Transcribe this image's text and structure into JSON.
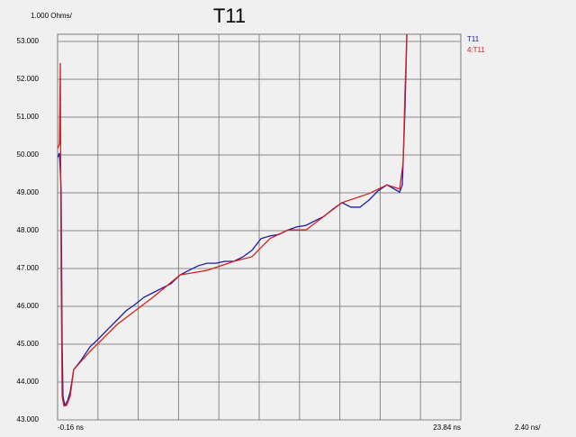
{
  "chart_data": {
    "type": "line",
    "title": "T11",
    "y_scale_label": "1.000 Ohms/",
    "x_scale_label": "2.40 ns/",
    "xlim": [
      -0.16,
      23.84
    ],
    "ylim": [
      43,
      53.19
    ],
    "xticks": [
      {
        "value": -0.16,
        "label": "-0.16 ns"
      },
      {
        "value": 23.84,
        "label": "23.84 ns"
      }
    ],
    "x_grid_divisions": 10,
    "yticks": [
      {
        "value": 43,
        "label": "43.000"
      },
      {
        "value": 44,
        "label": "44.000"
      },
      {
        "value": 45,
        "label": "45.000"
      },
      {
        "value": 46,
        "label": "46.000"
      },
      {
        "value": 47,
        "label": "47.000"
      },
      {
        "value": 48,
        "label": "48.000"
      },
      {
        "value": 49,
        "label": "49.000"
      },
      {
        "value": 50,
        "label": "50.000"
      },
      {
        "value": 51,
        "label": "51.000"
      },
      {
        "value": 52,
        "label": "52.000"
      },
      {
        "value": 53,
        "label": "53.000"
      }
    ],
    "grid": true,
    "series": [
      {
        "name": "T11",
        "color": "#1c1ca8",
        "x": [
          -0.16,
          -0.05,
          0.05,
          0.11,
          0.16,
          0.27,
          0.43,
          0.59,
          0.8,
          1.23,
          1.77,
          2.34,
          2.84,
          3.38,
          3.91,
          4.45,
          4.98,
          5.52,
          6.05,
          6.59,
          7.13,
          7.66,
          8.2,
          8.73,
          9.27,
          9.81,
          10.34,
          10.88,
          11.41,
          11.95,
          12.48,
          13.02,
          13.56,
          14.09,
          14.63,
          15.16,
          15.7,
          16.23,
          16.77,
          17.3,
          17.84,
          18.38,
          18.91,
          19.45,
          19.88,
          20.2,
          20.36,
          20.52,
          20.63
        ],
        "values": [
          49.93,
          50.05,
          49.1,
          45.05,
          43.62,
          43.38,
          43.5,
          43.74,
          44.33,
          44.57,
          44.93,
          45.17,
          45.4,
          45.64,
          45.88,
          46.05,
          46.24,
          46.36,
          46.48,
          46.6,
          46.83,
          46.95,
          47.07,
          47.14,
          47.14,
          47.19,
          47.19,
          47.31,
          47.48,
          47.79,
          47.86,
          47.9,
          48.02,
          48.1,
          48.14,
          48.26,
          48.38,
          48.57,
          48.74,
          48.62,
          48.62,
          48.81,
          49.05,
          49.21,
          49.1,
          49.02,
          49.21,
          51.24,
          53.19
        ]
      },
      {
        "name": "4:T11",
        "color": "#d42020",
        "x": [
          -0.16,
          -0.05,
          0.0,
          0.05,
          0.11,
          0.21,
          0.37,
          0.59,
          0.8,
          1.77,
          3.38,
          4.45,
          5.52,
          7.13,
          8.73,
          10.34,
          11.41,
          12.48,
          13.56,
          14.63,
          15.7,
          16.77,
          18.38,
          19.45,
          20.2,
          20.41,
          20.52,
          20.63
        ],
        "values": [
          50.17,
          50.29,
          52.43,
          46.95,
          43.62,
          43.38,
          43.38,
          43.62,
          44.33,
          44.81,
          45.52,
          45.88,
          46.24,
          46.83,
          46.95,
          47.19,
          47.31,
          47.79,
          48.02,
          48.02,
          48.38,
          48.74,
          48.98,
          49.21,
          49.1,
          49.81,
          51.71,
          53.19
        ]
      }
    ]
  }
}
